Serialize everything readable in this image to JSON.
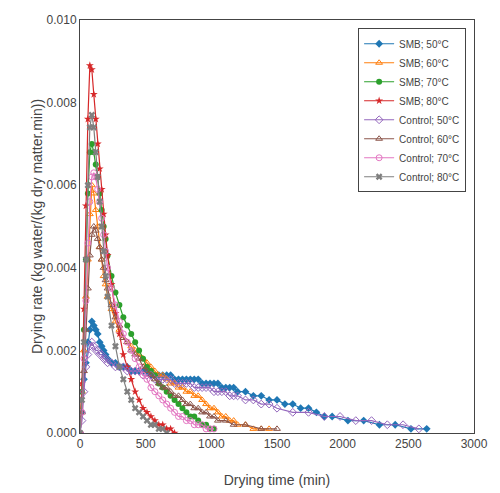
{
  "chart_data": {
    "type": "line",
    "xlabel": "Drying time (min)",
    "ylabel": "Drying rate (kg water/(kg dry matter.min))",
    "xlim": [
      0,
      3000
    ],
    "ylim": [
      0,
      0.01
    ],
    "xticks": [
      0,
      500,
      1000,
      1500,
      2000,
      2500,
      3000
    ],
    "yticks": [
      {
        "value": 0.0,
        "label": "0.000"
      },
      {
        "value": 0.002,
        "label": "0.002"
      },
      {
        "value": 0.004,
        "label": "0.004"
      },
      {
        "value": 0.006,
        "label": "0.006"
      },
      {
        "value": 0.008,
        "label": "0.008"
      },
      {
        "value": 0.01,
        "label": "0.010"
      }
    ],
    "grid": false,
    "legend": "upper right",
    "series": [
      {
        "name": "SMB; 50°C",
        "marker": "diamond",
        "x": [
          0,
          15,
          30,
          45,
          60,
          75,
          90,
          105,
          120,
          135,
          150,
          165,
          180,
          195,
          210,
          240,
          270,
          300,
          330,
          360,
          390,
          420,
          450,
          480,
          510,
          540,
          570,
          600,
          630,
          660,
          690,
          720,
          750,
          780,
          810,
          840,
          870,
          900,
          930,
          960,
          990,
          1020,
          1050,
          1080,
          1110,
          1140,
          1170,
          1200,
          1260,
          1320,
          1380,
          1440,
          1500,
          1560,
          1620,
          1680,
          1740,
          1800,
          1860,
          1920,
          2040,
          2160,
          2280,
          2400,
          2520,
          2640
        ],
        "values": [
          0.0,
          0.0005,
          0.0013,
          0.0017,
          0.0022,
          0.0025,
          0.0027,
          0.0026,
          0.0025,
          0.0024,
          0.0022,
          0.0021,
          0.002,
          0.0019,
          0.0018,
          0.0017,
          0.0017,
          0.0016,
          0.0016,
          0.0016,
          0.0015,
          0.0015,
          0.0015,
          0.0015,
          0.0015,
          0.0014,
          0.0014,
          0.0014,
          0.0014,
          0.0014,
          0.0014,
          0.0013,
          0.0013,
          0.0013,
          0.0013,
          0.0013,
          0.0013,
          0.0013,
          0.0012,
          0.0012,
          0.0012,
          0.0012,
          0.0012,
          0.0011,
          0.0011,
          0.0011,
          0.0011,
          0.001,
          0.001,
          0.0009,
          0.0009,
          0.0008,
          0.0008,
          0.0007,
          0.0007,
          0.0006,
          0.0006,
          0.0005,
          0.0004,
          0.0004,
          0.0003,
          0.0003,
          0.0002,
          0.0002,
          0.0001,
          0.0001
        ]
      },
      {
        "name": "SMB; 60°C",
        "marker": "triangle-up-open",
        "x": [
          0,
          15,
          30,
          45,
          60,
          75,
          90,
          105,
          120,
          135,
          150,
          165,
          180,
          195,
          210,
          240,
          270,
          300,
          330,
          360,
          390,
          420,
          450,
          480,
          510,
          540,
          570,
          600,
          630,
          660,
          690,
          720,
          750,
          780,
          810,
          840,
          870,
          900,
          930,
          960,
          990,
          1020,
          1050,
          1080,
          1110,
          1140,
          1170,
          1200,
          1260,
          1320,
          1380,
          1440
        ],
        "values": [
          0.0,
          0.001,
          0.002,
          0.0033,
          0.0042,
          0.0053,
          0.006,
          0.0058,
          0.0054,
          0.005,
          0.0045,
          0.0042,
          0.0038,
          0.0036,
          0.0033,
          0.003,
          0.0027,
          0.0025,
          0.0023,
          0.0022,
          0.0021,
          0.002,
          0.0019,
          0.0018,
          0.0017,
          0.0016,
          0.0015,
          0.0014,
          0.0014,
          0.0013,
          0.0012,
          0.0012,
          0.0011,
          0.0011,
          0.001,
          0.001,
          0.0009,
          0.0009,
          0.0008,
          0.0007,
          0.0006,
          0.0006,
          0.0005,
          0.0004,
          0.0004,
          0.0003,
          0.0003,
          0.0002,
          0.0002,
          0.0001,
          0.0001,
          0.0001
        ]
      },
      {
        "name": "SMB; 70°C",
        "marker": "circle",
        "x": [
          0,
          15,
          30,
          45,
          60,
          75,
          90,
          105,
          120,
          135,
          150,
          165,
          180,
          195,
          210,
          240,
          270,
          300,
          330,
          360,
          390,
          420,
          450,
          480,
          510,
          540,
          570,
          600,
          630,
          660,
          690,
          720,
          750,
          780,
          810,
          840,
          870,
          900,
          930,
          960,
          990,
          1020
        ],
        "values": [
          0.0,
          0.001,
          0.0025,
          0.0042,
          0.0058,
          0.0068,
          0.007,
          0.0068,
          0.0065,
          0.0062,
          0.0058,
          0.0054,
          0.005,
          0.0047,
          0.0043,
          0.0038,
          0.0034,
          0.0031,
          0.0028,
          0.0026,
          0.0024,
          0.0022,
          0.002,
          0.0018,
          0.0016,
          0.0015,
          0.0014,
          0.0012,
          0.0011,
          0.001,
          0.0009,
          0.0008,
          0.0007,
          0.0006,
          0.0005,
          0.0004,
          0.0004,
          0.0003,
          0.0002,
          0.0002,
          0.0001,
          0.0001
        ]
      },
      {
        "name": "SMB; 80°C",
        "marker": "star",
        "x": [
          0,
          15,
          30,
          45,
          60,
          75,
          90,
          105,
          120,
          135,
          150,
          165,
          180,
          195,
          210,
          240,
          270,
          300,
          330,
          360,
          390,
          420,
          450,
          480,
          510,
          540,
          570,
          600,
          630,
          660,
          690,
          720
        ],
        "values": [
          0.0,
          0.0012,
          0.003,
          0.0055,
          0.0076,
          0.0089,
          0.0088,
          0.0082,
          0.0076,
          0.007,
          0.0064,
          0.0059,
          0.0053,
          0.0048,
          0.0043,
          0.0036,
          0.0029,
          0.0024,
          0.0019,
          0.0016,
          0.0013,
          0.001,
          0.0008,
          0.0006,
          0.0005,
          0.0004,
          0.0003,
          0.0002,
          0.0002,
          0.0001,
          0.0001,
          0.0
        ]
      },
      {
        "name": "Control; 50°C",
        "marker": "diamond-open",
        "x": [
          0,
          15,
          30,
          45,
          60,
          75,
          90,
          105,
          120,
          135,
          150,
          165,
          180,
          195,
          210,
          240,
          270,
          300,
          330,
          360,
          390,
          420,
          450,
          480,
          510,
          540,
          570,
          600,
          630,
          660,
          690,
          720,
          750,
          780,
          810,
          840,
          870,
          900,
          930,
          960,
          990,
          1020,
          1050,
          1080,
          1110,
          1140,
          1170,
          1200,
          1260,
          1320,
          1380,
          1440,
          1500,
          1620,
          1740,
          1860,
          1980,
          2100,
          2220,
          2340,
          2460,
          2580
        ],
        "values": [
          0.0,
          0.0003,
          0.001,
          0.0016,
          0.0019,
          0.0021,
          0.0022,
          0.0021,
          0.002,
          0.002,
          0.0019,
          0.0019,
          0.0018,
          0.0018,
          0.0017,
          0.0017,
          0.0016,
          0.0016,
          0.0016,
          0.0015,
          0.0015,
          0.0015,
          0.0015,
          0.0014,
          0.0014,
          0.0014,
          0.0013,
          0.0013,
          0.0013,
          0.0013,
          0.0013,
          0.0012,
          0.0012,
          0.0012,
          0.0012,
          0.0012,
          0.0011,
          0.0011,
          0.0011,
          0.0011,
          0.0011,
          0.001,
          0.001,
          0.001,
          0.001,
          0.0009,
          0.0009,
          0.0009,
          0.0008,
          0.0008,
          0.0007,
          0.0007,
          0.0006,
          0.0005,
          0.0005,
          0.0004,
          0.0004,
          0.0003,
          0.0003,
          0.0002,
          0.0002,
          0.0001
        ]
      },
      {
        "name": "Control; 60°C",
        "marker": "triangle-up-open",
        "x": [
          0,
          15,
          30,
          45,
          60,
          75,
          90,
          105,
          120,
          135,
          150,
          165,
          180,
          195,
          210,
          240,
          270,
          300,
          330,
          360,
          390,
          420,
          450,
          480,
          510,
          540,
          570,
          600,
          630,
          660,
          690,
          720,
          750,
          780,
          810,
          840,
          870,
          900,
          930,
          960,
          990,
          1020,
          1050,
          1110,
          1170,
          1260,
          1380,
          1500
        ],
        "values": [
          0.0,
          0.0005,
          0.0015,
          0.0025,
          0.0035,
          0.0043,
          0.0048,
          0.005,
          0.0049,
          0.0047,
          0.0045,
          0.0042,
          0.004,
          0.0037,
          0.0035,
          0.0031,
          0.0028,
          0.0026,
          0.0023,
          0.0022,
          0.002,
          0.0019,
          0.0018,
          0.0016,
          0.0015,
          0.0014,
          0.0013,
          0.0012,
          0.0011,
          0.0011,
          0.001,
          0.0009,
          0.0009,
          0.0008,
          0.0007,
          0.0007,
          0.0006,
          0.0006,
          0.0005,
          0.0005,
          0.0004,
          0.0004,
          0.0003,
          0.0003,
          0.0002,
          0.0002,
          0.0001,
          0.0001
        ]
      },
      {
        "name": "Control; 70°C",
        "marker": "circle-open",
        "x": [
          0,
          15,
          30,
          45,
          60,
          75,
          90,
          105,
          120,
          135,
          150,
          165,
          180,
          195,
          210,
          240,
          270,
          300,
          330,
          360,
          390,
          420,
          450,
          480,
          510,
          540,
          570,
          600,
          630,
          660,
          690,
          720,
          750,
          780,
          810,
          840,
          870,
          900,
          930,
          960,
          990,
          1020
        ],
        "values": [
          0.0,
          0.0005,
          0.0018,
          0.0032,
          0.0046,
          0.0056,
          0.0062,
          0.0063,
          0.0062,
          0.0059,
          0.0056,
          0.0052,
          0.0048,
          0.0044,
          0.004,
          0.0035,
          0.0031,
          0.0027,
          0.0024,
          0.0022,
          0.002,
          0.0018,
          0.0016,
          0.0014,
          0.0013,
          0.0011,
          0.001,
          0.0009,
          0.0008,
          0.0007,
          0.0006,
          0.0005,
          0.0004,
          0.0004,
          0.0003,
          0.0003,
          0.0002,
          0.0002,
          0.0002,
          0.0001,
          0.0001,
          0.0001
        ]
      },
      {
        "name": "Control; 80°C",
        "marker": "x",
        "x": [
          0,
          15,
          30,
          45,
          60,
          75,
          90,
          105,
          120,
          135,
          150,
          165,
          180,
          195,
          210,
          240,
          270,
          300,
          330,
          360,
          390,
          420,
          450,
          480,
          510,
          540,
          570,
          600,
          630,
          660
        ],
        "values": [
          0.0,
          0.0008,
          0.0022,
          0.0042,
          0.006,
          0.0074,
          0.0077,
          0.0074,
          0.0068,
          0.0062,
          0.0056,
          0.005,
          0.0044,
          0.0038,
          0.0033,
          0.0026,
          0.0021,
          0.0016,
          0.0013,
          0.001,
          0.0008,
          0.0006,
          0.0005,
          0.0004,
          0.0003,
          0.0002,
          0.0002,
          0.0001,
          0.0001,
          0.0
        ]
      }
    ]
  }
}
